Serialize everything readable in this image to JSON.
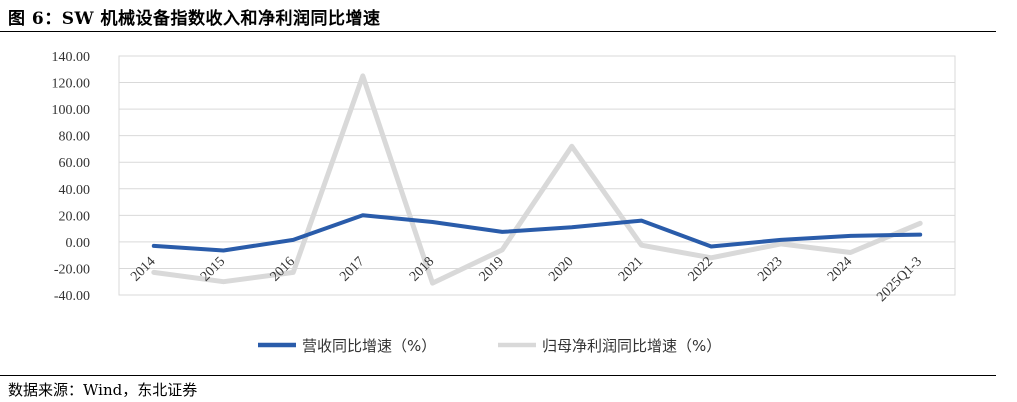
{
  "figure": {
    "title": "图 6：SW 机械设备指数收入和净利润同比增速",
    "source": "数据来源：Wind，东北证券"
  },
  "chart_data": {
    "type": "line",
    "categories": [
      "2014",
      "2015",
      "2016",
      "2017",
      "2018",
      "2019",
      "2020",
      "2021",
      "2022",
      "2023",
      "2024",
      "2025Q1-3"
    ],
    "y_ticks": [
      "140.00",
      "120.00",
      "100.00",
      "80.00",
      "60.00",
      "40.00",
      "20.00",
      "0.00",
      "-20.00",
      "-40.00"
    ],
    "ylim": [
      -40,
      140
    ],
    "grid": true,
    "legend_position": "bottom",
    "series": [
      {
        "name": "营收同比增速（%）",
        "color": "#2a5caa",
        "values": [
          -3,
          -6.5,
          1.5,
          20,
          15,
          7.5,
          11,
          16,
          -3.5,
          1.5,
          4.5,
          5.5
        ]
      },
      {
        "name": "归母净利润同比增速（%）",
        "color": "#d9d9d9",
        "values": [
          -23,
          -30,
          -23,
          125,
          -31,
          -6,
          72,
          -2.5,
          -12,
          -1.5,
          -8,
          14
        ]
      }
    ]
  }
}
